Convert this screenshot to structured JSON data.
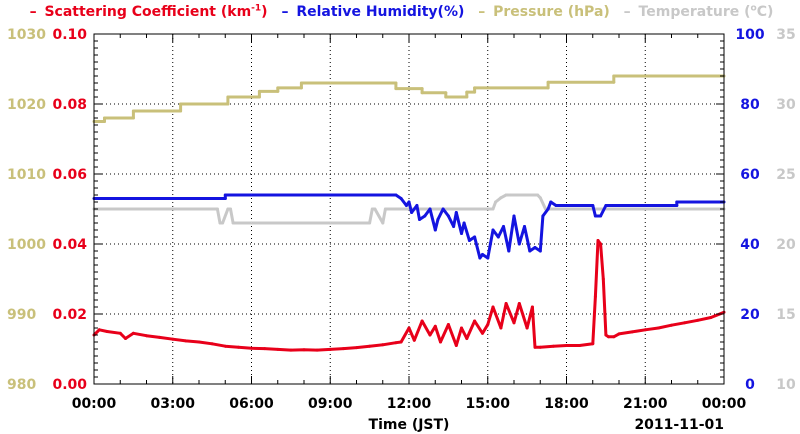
{
  "legend": [
    {
      "dash": "–",
      "label": "Scattering Coefficient (km",
      "sup": "-1",
      "tail": ")",
      "color": "#e8001a"
    },
    {
      "dash": "–",
      "label": "Relative Humidity(%)",
      "color": "#1414e0"
    },
    {
      "dash": "–",
      "label": "Pressure (hPa)",
      "color": "#c9c07a"
    },
    {
      "dash": "–",
      "label": "Temperature (",
      "sup": "o",
      "tail": "C)",
      "color": "#c8c8c8"
    }
  ],
  "chart_data": {
    "type": "line",
    "xlabel": "Time (JST)",
    "date_label": "2011-11-01",
    "x_range": [
      0,
      24
    ],
    "x_ticks": [
      "00:00",
      "03:00",
      "06:00",
      "09:00",
      "12:00",
      "15:00",
      "18:00",
      "21:00",
      "00:00"
    ],
    "grid": true,
    "axes": {
      "pressure": {
        "side": "left-outer",
        "range": [
          980,
          1030
        ],
        "ticks": [
          "980",
          "990",
          "1000",
          "1010",
          "1020",
          "1030"
        ],
        "color": "#c9c07a"
      },
      "scattering": {
        "side": "left-inner",
        "range": [
          0,
          0.1
        ],
        "ticks": [
          "0.00",
          "0.02",
          "0.04",
          "0.06",
          "0.08",
          "0.10"
        ],
        "color": "#e8001a"
      },
      "humidity": {
        "side": "right-inner",
        "range": [
          0,
          100
        ],
        "ticks": [
          "0",
          "20",
          "40",
          "60",
          "80",
          "100"
        ],
        "color": "#1414e0"
      },
      "temperature": {
        "side": "right-outer",
        "range": [
          10,
          35
        ],
        "ticks": [
          "10",
          "15",
          "20",
          "25",
          "30",
          "35"
        ],
        "color": "#c8c8c8"
      }
    },
    "series": [
      {
        "name": "Pressure (hPa)",
        "axis": "pressure",
        "color": "#c9c07a",
        "step": true,
        "x": [
          0,
          0.4,
          0.4,
          1.5,
          1.5,
          3.3,
          3.3,
          5.1,
          5.1,
          6.3,
          6.3,
          7.0,
          7.0,
          7.9,
          7.9,
          11.5,
          11.5,
          12.5,
          12.5,
          13.4,
          13.4,
          14.2,
          14.2,
          14.5,
          14.5,
          17.3,
          17.3,
          19.8,
          19.8,
          24
        ],
        "y": [
          1017.5,
          1017.5,
          1018,
          1018,
          1019,
          1019,
          1020,
          1020,
          1021,
          1021,
          1021.8,
          1021.8,
          1022.3,
          1022.3,
          1023,
          1023,
          1022.2,
          1022.2,
          1021.6,
          1021.6,
          1021,
          1021,
          1021.7,
          1021.7,
          1022.3,
          1022.3,
          1023.1,
          1023.1,
          1024,
          1024
        ]
      },
      {
        "name": "Temperature (oC)",
        "axis": "temperature",
        "color": "#c8c8c8",
        "step": true,
        "x": [
          0,
          4.7,
          4.8,
          4.9,
          5.1,
          5.2,
          5.3,
          10.5,
          10.6,
          10.7,
          11.0,
          11.1,
          15.2,
          15.3,
          15.5,
          15.7,
          15.9,
          16.9,
          17.0,
          17.2,
          17.3,
          19.3,
          19.4,
          24
        ],
        "y": [
          22.5,
          22.5,
          21.5,
          21.5,
          22.5,
          22.5,
          21.5,
          21.5,
          22.5,
          22.5,
          21.5,
          22.5,
          22.5,
          23,
          23.3,
          23.5,
          23.5,
          23.5,
          23.3,
          22.5,
          22.5,
          22.5,
          22.5,
          22.5
        ]
      },
      {
        "name": "Relative Humidity(%)",
        "axis": "humidity",
        "color": "#1414e0",
        "step": false,
        "x": [
          0,
          5.0,
          5.0,
          11.5,
          11.7,
          11.9,
          12.0,
          12.1,
          12.3,
          12.4,
          12.6,
          12.8,
          13.0,
          13.1,
          13.3,
          13.5,
          13.7,
          13.8,
          14.0,
          14.1,
          14.3,
          14.5,
          14.7,
          14.8,
          15.0,
          15.1,
          15.2,
          15.4,
          15.6,
          15.8,
          16.0,
          16.2,
          16.4,
          16.6,
          16.8,
          17.0,
          17.1,
          17.3,
          17.4,
          17.6,
          19.0,
          19.1,
          19.3,
          19.5,
          19.6,
          19.8,
          22.2,
          22.2,
          24
        ],
        "y": [
          53,
          53,
          54,
          54,
          53,
          51,
          52,
          49,
          51,
          47,
          48,
          50,
          44,
          47,
          50,
          48,
          45,
          49,
          43,
          46,
          41,
          42,
          36,
          37,
          36,
          40,
          44,
          42,
          45,
          38,
          48,
          40,
          45,
          38,
          39,
          38,
          48,
          50,
          52,
          51,
          51,
          48,
          48,
          51,
          51,
          51,
          51,
          52,
          52
        ]
      },
      {
        "name": "Scattering Coefficient (km-1)",
        "axis": "scattering",
        "color": "#e8001a",
        "step": false,
        "x": [
          0,
          0.2,
          0.5,
          1.0,
          1.2,
          1.5,
          2.0,
          2.5,
          3.0,
          3.5,
          4.0,
          4.5,
          5.0,
          5.5,
          6.0,
          6.5,
          7.0,
          7.5,
          8.0,
          8.5,
          9.0,
          9.5,
          10.0,
          10.5,
          11.0,
          11.5,
          11.7,
          12.0,
          12.2,
          12.5,
          12.8,
          13.0,
          13.2,
          13.5,
          13.8,
          14.0,
          14.2,
          14.5,
          14.8,
          15.0,
          15.2,
          15.5,
          15.7,
          16.0,
          16.2,
          16.5,
          16.7,
          16.8,
          17.0,
          17.5,
          18.0,
          18.5,
          19.0,
          19.1,
          19.2,
          19.3,
          19.4,
          19.5,
          19.6,
          19.8,
          20.0,
          20.5,
          21.0,
          21.5,
          22.0,
          22.5,
          23.0,
          23.5,
          24
        ],
        "y": [
          0.014,
          0.0155,
          0.015,
          0.0145,
          0.013,
          0.0145,
          0.0138,
          0.0133,
          0.0128,
          0.0123,
          0.012,
          0.0115,
          0.0108,
          0.0105,
          0.0102,
          0.0101,
          0.0099,
          0.0097,
          0.0098,
          0.0097,
          0.0099,
          0.0101,
          0.0104,
          0.0108,
          0.0112,
          0.0118,
          0.012,
          0.016,
          0.0125,
          0.018,
          0.014,
          0.0165,
          0.012,
          0.017,
          0.011,
          0.016,
          0.013,
          0.018,
          0.0145,
          0.017,
          0.022,
          0.016,
          0.023,
          0.0175,
          0.023,
          0.016,
          0.022,
          0.0105,
          0.0105,
          0.0108,
          0.011,
          0.011,
          0.0115,
          0.025,
          0.041,
          0.04,
          0.03,
          0.014,
          0.0135,
          0.0135,
          0.0143,
          0.0149,
          0.0155,
          0.016,
          0.0168,
          0.0175,
          0.0182,
          0.019,
          0.0205
        ]
      }
    ]
  }
}
